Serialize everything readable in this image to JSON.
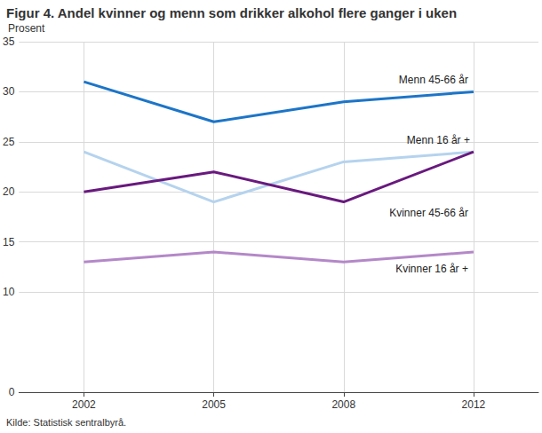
{
  "chart_data": {
    "type": "line",
    "title": "Figur 4. Andel kvinner og menn som drikker alkohol flere ganger i uken",
    "y_label": "Prosent",
    "source": "Kilde: Statistisk sentralbyrå.",
    "categories": [
      "2002",
      "2005",
      "2008",
      "2012"
    ],
    "series": [
      {
        "name": "Menn 45-66 år",
        "color": "#1c75c8",
        "values": [
          31,
          27,
          29,
          30
        ]
      },
      {
        "name": "Menn 16 år +",
        "color": "#b5d3ee",
        "values": [
          24,
          19,
          23,
          24
        ]
      },
      {
        "name": "Kvinner 45-66 år",
        "color": "#69197e",
        "values": [
          20,
          22,
          19,
          24
        ]
      },
      {
        "name": "Kvinner 16 år +",
        "color": "#b488c8",
        "values": [
          13,
          14,
          13,
          14
        ]
      }
    ],
    "ylim": [
      0,
      35
    ],
    "yticks": [
      0,
      10,
      15,
      20,
      25,
      30,
      35
    ],
    "grid": true
  }
}
